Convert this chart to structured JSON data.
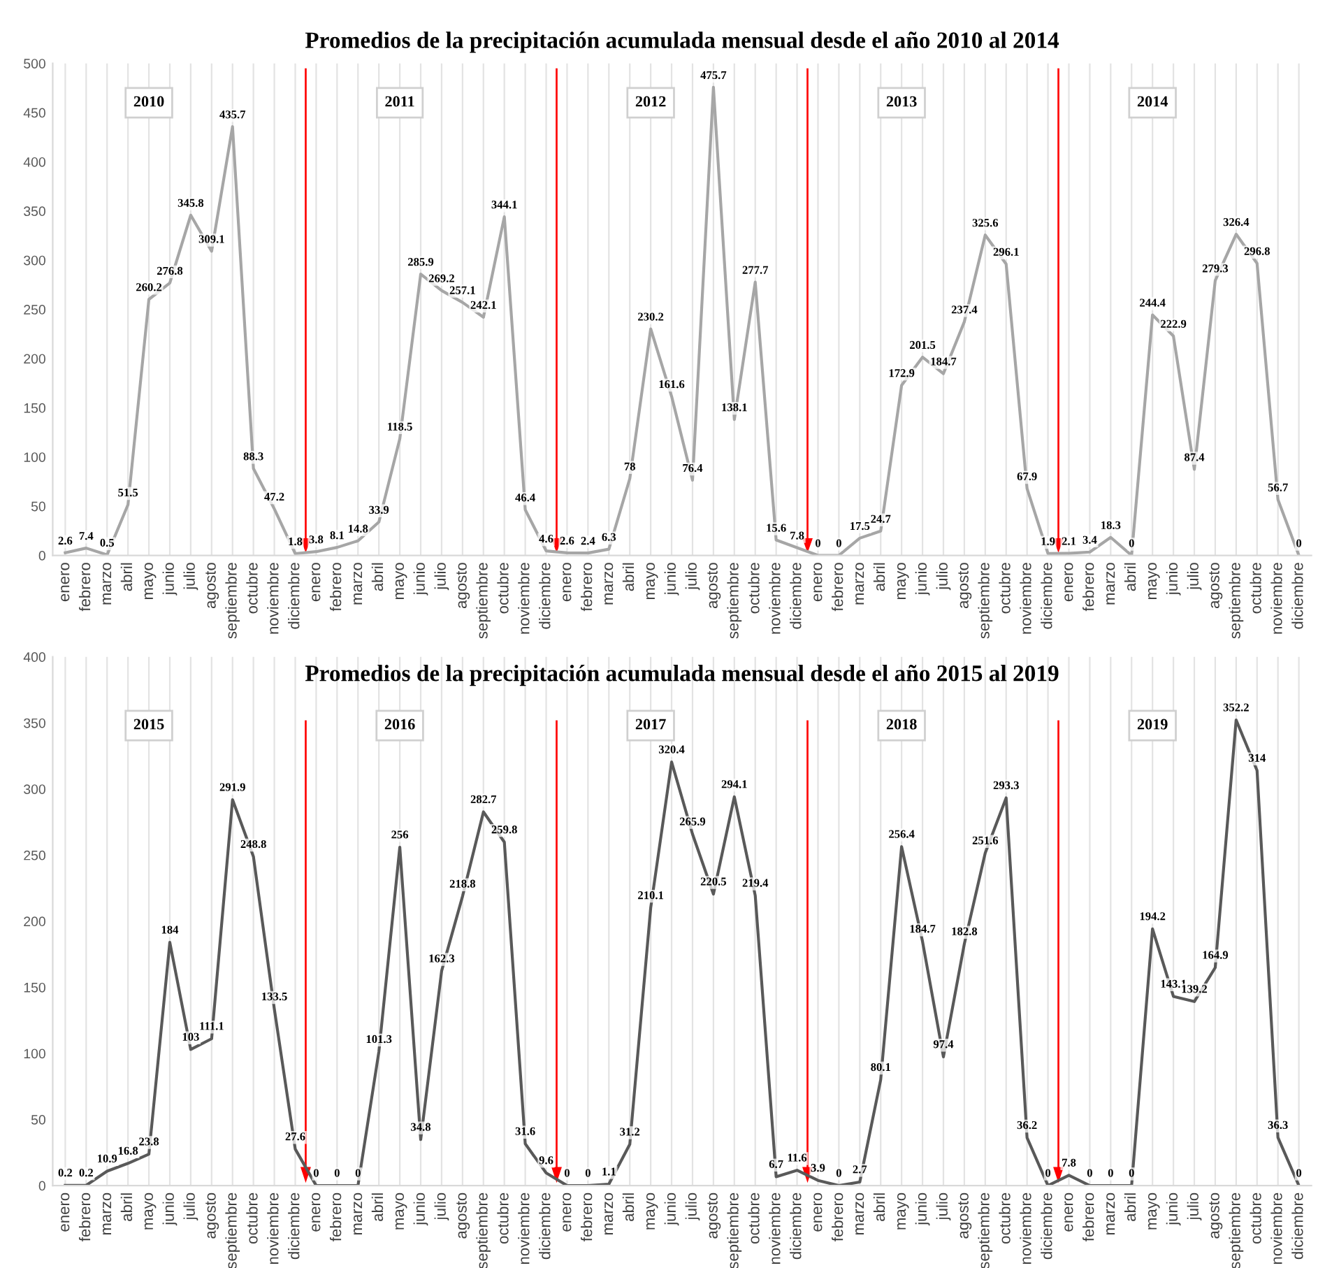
{
  "chart_data": [
    {
      "type": "line",
      "title": "Promedios de la precipitación acumulada mensual desde el año 2010 al 2014",
      "categories": [
        "enero",
        "febrero",
        "marzo",
        "abril",
        "mayo",
        "junio",
        "julio",
        "agosto",
        "septiembre",
        "octubre",
        "noviembre",
        "diciembre",
        "enero",
        "febrero",
        "marzo",
        "abril",
        "mayo",
        "junio",
        "julio",
        "agosto",
        "septiembre",
        "octubre",
        "noviembre",
        "diciembre",
        "enero",
        "febrero",
        "marzo",
        "abril",
        "mayo",
        "junio",
        "julio",
        "agosto",
        "septiembre",
        "octubre",
        "noviembre",
        "diciembre",
        "enero",
        "febrero",
        "marzo",
        "abril",
        "mayo",
        "junio",
        "julio",
        "agosto",
        "septiembre",
        "octubre",
        "noviembre",
        "diciembre",
        "enero",
        "febrero",
        "marzo",
        "abril",
        "mayo",
        "junio",
        "julio",
        "agosto",
        "septiembre",
        "octubre",
        "noviembre",
        "diciembre"
      ],
      "series": [
        {
          "color": "#a6a6a6",
          "values": [
            2.6,
            7.4,
            0.5,
            51.5,
            260.2,
            276.8,
            345.8,
            309.1,
            435.7,
            88.3,
            47.2,
            1.8,
            3.8,
            8.1,
            14.8,
            33.9,
            118.5,
            285.9,
            269.2,
            257.1,
            242.1,
            344.1,
            46.4,
            4.6,
            2.6,
            2.4,
            6.3,
            78,
            230.2,
            161.6,
            76.4,
            475.7,
            138.1,
            277.7,
            15.6,
            7.8,
            0,
            0,
            17.5,
            24.7,
            172.9,
            201.5,
            184.7,
            237.4,
            325.6,
            296.1,
            67.9,
            1.9,
            2.1,
            3.4,
            18.3,
            0,
            244.4,
            222.9,
            87.4,
            279.3,
            326.4,
            296.8,
            56.7,
            0
          ]
        }
      ],
      "annotations": [
        "2010",
        "2011",
        "2012",
        "2013",
        "2014"
      ],
      "ylim": [
        0,
        500
      ],
      "yticks": [
        0,
        50,
        100,
        150,
        200,
        250,
        300,
        350,
        400,
        450,
        500
      ],
      "grid": "x",
      "data_labels": true,
      "marker": "none",
      "line_style": "solid",
      "legend": false
    },
    {
      "type": "line",
      "title": "Promedios de la precipitación acumulada mensual desde el año 2015 al 2019",
      "categories": [
        "enero",
        "febrero",
        "marzo",
        "abril",
        "mayo",
        "junio",
        "julio",
        "agosto",
        "septiembre",
        "octubre",
        "noviembre",
        "diciembre",
        "enero",
        "febrero",
        "marzo",
        "abril",
        "mayo",
        "junio",
        "julio",
        "agosto",
        "septiembre",
        "octubre",
        "noviembre",
        "diciembre",
        "enero",
        "febrero",
        "marzo",
        "abril",
        "mayo",
        "junio",
        "julio",
        "agosto",
        "septiembre",
        "octubre",
        "noviembre",
        "diciembre",
        "enero",
        "febrero",
        "marzo",
        "abril",
        "mayo",
        "junio",
        "julio",
        "agosto",
        "septiembre",
        "octubre",
        "noviembre",
        "diciembre",
        "enero",
        "febrero",
        "marzo",
        "abril",
        "mayo",
        "junio",
        "julio",
        "agosto",
        "septiembre",
        "octubre",
        "noviembre",
        "diciembre"
      ],
      "series": [
        {
          "color": "#595959",
          "values": [
            0.2,
            0.2,
            10.9,
            16.8,
            23.8,
            184,
            103,
            111.1,
            291.9,
            248.8,
            133.5,
            27.6,
            0,
            0,
            0,
            101.3,
            256,
            34.8,
            162.3,
            218.8,
            282.7,
            259.8,
            31.6,
            9.6,
            0,
            0,
            1.1,
            31.2,
            210.1,
            320.4,
            265.9,
            220.5,
            294.1,
            219.4,
            6.7,
            11.6,
            3.9,
            0,
            2.7,
            80.1,
            256.4,
            184.7,
            97.4,
            182.8,
            251.6,
            293.3,
            36.2,
            0,
            7.8,
            0,
            0,
            0,
            194.2,
            143.1,
            139.2,
            164.9,
            352.2,
            314,
            36.3,
            0
          ]
        }
      ],
      "annotations": [
        "2015",
        "2016",
        "2017",
        "2018",
        "2019"
      ],
      "ylim": [
        0,
        400
      ],
      "yticks": [
        0,
        50,
        100,
        150,
        200,
        250,
        300,
        350,
        400
      ],
      "grid": "x",
      "data_labels": true,
      "marker": "none",
      "line_style": "solid",
      "legend": false
    }
  ]
}
